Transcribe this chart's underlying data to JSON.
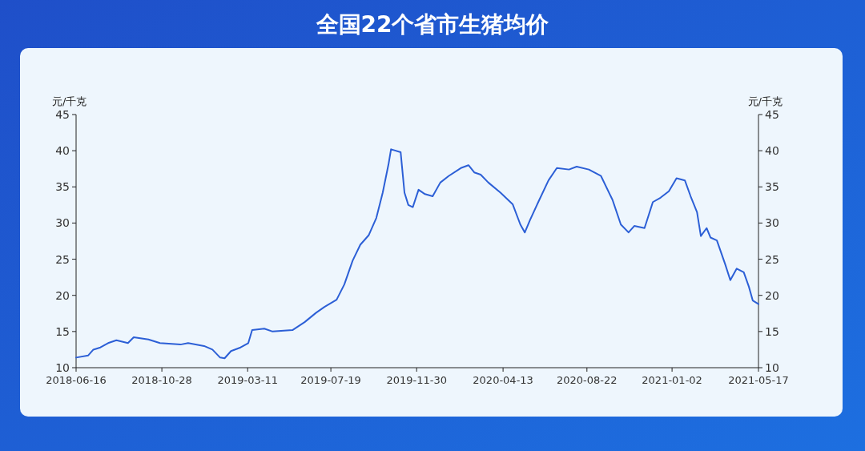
{
  "chart_data": {
    "type": "line",
    "title": "全国22个省市生猪均价",
    "ylabel": "元/千克",
    "y2label": "元/千克",
    "x": [
      "2018-06-16",
      "2018-07-05",
      "2018-07-13",
      "2018-07-24",
      "2018-08-05",
      "2018-08-18",
      "2018-09-05",
      "2018-09-14",
      "2018-10-07",
      "2018-10-25",
      "2018-11-26",
      "2018-12-08",
      "2019-01-02",
      "2019-01-15",
      "2019-01-27",
      "2019-02-03",
      "2019-02-13",
      "2019-02-28",
      "2019-03-12",
      "2019-03-18",
      "2019-04-06",
      "2019-04-19",
      "2019-05-20",
      "2019-06-08",
      "2019-06-26",
      "2019-07-09",
      "2019-07-28",
      "2019-08-09",
      "2019-08-22",
      "2019-09-03",
      "2019-09-16",
      "2019-09-28",
      "2019-10-08",
      "2019-10-17",
      "2019-10-21",
      "2019-11-05",
      "2019-11-11",
      "2019-11-17",
      "2019-11-24",
      "2019-12-03",
      "2019-12-13",
      "2019-12-25",
      "2020-01-06",
      "2020-01-19",
      "2020-02-07",
      "2020-02-19",
      "2020-02-28",
      "2020-03-09",
      "2020-03-21",
      "2020-04-09",
      "2020-04-28",
      "2020-05-10",
      "2020-05-17",
      "2020-05-25",
      "2020-06-07",
      "2020-06-23",
      "2020-07-06",
      "2020-07-25",
      "2020-08-06",
      "2020-08-25",
      "2020-09-13",
      "2020-10-01",
      "2020-10-14",
      "2020-10-26",
      "2020-11-04",
      "2020-11-20",
      "2020-12-03",
      "2020-12-15",
      "2020-12-28",
      "2021-01-09",
      "2021-01-22",
      "2021-01-31",
      "2021-02-10",
      "2021-02-16",
      "2021-02-25",
      "2021-03-03",
      "2021-03-13",
      "2021-03-26",
      "2021-04-03",
      "2021-04-13",
      "2021-04-24",
      "2021-05-02",
      "2021-05-08",
      "2021-05-17"
    ],
    "series": [
      {
        "color": "#2c5fd6",
        "values": [
          11.4,
          11.7,
          12.5,
          12.8,
          13.4,
          13.8,
          13.4,
          14.2,
          13.9,
          13.4,
          13.2,
          13.4,
          13.0,
          12.5,
          11.4,
          11.3,
          12.3,
          12.8,
          13.4,
          15.2,
          15.4,
          15.0,
          15.2,
          16.3,
          17.6,
          18.4,
          19.4,
          21.5,
          24.8,
          27.0,
          28.3,
          30.7,
          34.2,
          38.1,
          40.2,
          39.8,
          34.2,
          32.5,
          32.2,
          34.6,
          34.0,
          33.7,
          35.6,
          36.5,
          37.6,
          38.0,
          37.0,
          36.7,
          35.6,
          34.2,
          32.6,
          29.8,
          28.7,
          30.4,
          32.9,
          35.9,
          37.6,
          37.4,
          37.8,
          37.4,
          36.5,
          33.2,
          29.8,
          28.7,
          29.6,
          29.3,
          32.9,
          33.5,
          34.4,
          36.2,
          35.9,
          33.7,
          31.5,
          28.2,
          29.3,
          28.0,
          27.6,
          24.3,
          22.1,
          23.7,
          23.2,
          21.2,
          19.3,
          18.8
        ]
      }
    ],
    "xlim": [
      "2018-06-16",
      "2021-05-17"
    ],
    "xticks": [
      "2018-06-16",
      "2018-10-28",
      "2019-03-11",
      "2019-07-19",
      "2019-11-30",
      "2020-04-13",
      "2020-08-22",
      "2021-01-02",
      "2021-05-17"
    ],
    "ylim": [
      10,
      45
    ],
    "yticks": [
      10,
      15,
      20,
      25,
      30,
      35,
      40,
      45
    ],
    "y2lim": [
      10,
      45
    ],
    "y2ticks": [
      10,
      15,
      20,
      25,
      30,
      35,
      40,
      45
    ]
  }
}
